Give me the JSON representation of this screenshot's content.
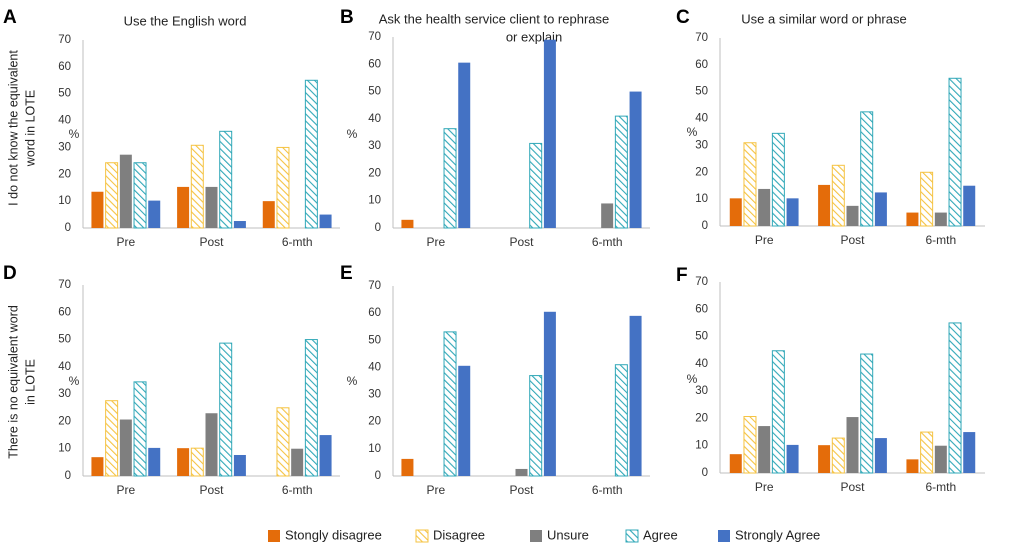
{
  "chart_data": {
    "type": "bar",
    "row_labels": [
      [
        "I do not know the equivalent",
        "word in LOTE"
      ],
      [
        "There is no equivalent word",
        "in LOTE"
      ]
    ],
    "legend": [
      {
        "name": "Stongly disagree",
        "color": "#E46C0A",
        "pattern": "solid"
      },
      {
        "name": "Disagree",
        "color": "#F5C342",
        "pattern": "hatch"
      },
      {
        "name": "Unsure",
        "color": "#7F7F7F",
        "pattern": "solid"
      },
      {
        "name": "Agree",
        "color": "#31A8B8",
        "pattern": "hatch"
      },
      {
        "name": "Strongly Agree",
        "color": "#4472C4",
        "pattern": "solid"
      }
    ],
    "panels": [
      {
        "label": "A",
        "title": [
          "Use the English word"
        ],
        "ylabel": "%",
        "categories": [
          "Pre",
          "Post",
          "6-mth"
        ],
        "ylim": [
          0,
          70
        ],
        "yticks": [
          0,
          10,
          20,
          30,
          40,
          50,
          60,
          70
        ],
        "series": [
          {
            "name": "Stongly disagree",
            "values": [
              13.5,
              15.3,
              10
            ]
          },
          {
            "name": "Disagree",
            "values": [
              24.3,
              30.8,
              30
            ]
          },
          {
            "name": "Unsure",
            "values": [
              27.3,
              15.3,
              0
            ]
          },
          {
            "name": "Agree",
            "values": [
              24.3,
              36,
              55
            ]
          },
          {
            "name": "Strongly Agree",
            "values": [
              10.2,
              2.6,
              5
            ]
          }
        ]
      },
      {
        "label": "B",
        "title": [
          "Ask the health service client to rephrase",
          "or explain"
        ],
        "ylabel": "%",
        "categories": [
          "Pre",
          "Post",
          "6-mth"
        ],
        "ylim": [
          0,
          70
        ],
        "yticks": [
          0,
          10,
          20,
          30,
          40,
          50,
          60,
          70
        ],
        "series": [
          {
            "name": "Stongly disagree",
            "values": [
              3,
              0,
              0
            ]
          },
          {
            "name": "Disagree",
            "values": [
              0,
              0,
              0
            ]
          },
          {
            "name": "Unsure",
            "values": [
              0,
              0,
              9
            ]
          },
          {
            "name": "Agree",
            "values": [
              36.4,
              31,
              41
            ]
          },
          {
            "name": "Strongly Agree",
            "values": [
              60.6,
              69,
              50
            ]
          }
        ]
      },
      {
        "label": "C",
        "title": [
          "Use a similar word or phrase"
        ],
        "ylabel": "%",
        "categories": [
          "Pre",
          "Post",
          "6-mth"
        ],
        "ylim": [
          0,
          70
        ],
        "yticks": [
          0,
          10,
          20,
          30,
          40,
          50,
          60,
          70
        ],
        "series": [
          {
            "name": "Stongly disagree",
            "values": [
              10.3,
              15.3,
              5
            ]
          },
          {
            "name": "Disagree",
            "values": [
              31,
              22.6,
              20
            ]
          },
          {
            "name": "Unsure",
            "values": [
              13.8,
              7.5,
              5
            ]
          },
          {
            "name": "Agree",
            "values": [
              34.5,
              42.5,
              55
            ]
          },
          {
            "name": "Strongly Agree",
            "values": [
              10.3,
              12.5,
              15
            ]
          }
        ]
      },
      {
        "label": "D",
        "title": [],
        "ylabel": "%",
        "categories": [
          "Pre",
          "Post",
          "6-mth"
        ],
        "ylim": [
          0,
          70
        ],
        "yticks": [
          0,
          10,
          20,
          30,
          40,
          50,
          60,
          70
        ],
        "series": [
          {
            "name": "Stongly disagree",
            "values": [
              6.9,
              10.2,
              0
            ]
          },
          {
            "name": "Disagree",
            "values": [
              27.6,
              10.2,
              25
            ]
          },
          {
            "name": "Unsure",
            "values": [
              20.7,
              23,
              10
            ]
          },
          {
            "name": "Agree",
            "values": [
              34.5,
              48.7,
              50
            ]
          },
          {
            "name": "Strongly Agree",
            "values": [
              10.3,
              7.7,
              15
            ]
          }
        ]
      },
      {
        "label": "E",
        "title": [],
        "ylabel": "%",
        "categories": [
          "Pre",
          "Post",
          "6-mth"
        ],
        "ylim": [
          0,
          70
        ],
        "yticks": [
          0,
          10,
          20,
          30,
          40,
          50,
          60,
          70
        ],
        "series": [
          {
            "name": "Stongly disagree",
            "values": [
              6.3,
              0,
              0
            ]
          },
          {
            "name": "Disagree",
            "values": [
              0,
              0,
              0
            ]
          },
          {
            "name": "Unsure",
            "values": [
              0,
              2.6,
              0
            ]
          },
          {
            "name": "Agree",
            "values": [
              53.1,
              37,
              41
            ]
          },
          {
            "name": "Strongly Agree",
            "values": [
              40.6,
              60.5,
              59
            ]
          }
        ]
      },
      {
        "label": "F",
        "title": [],
        "ylabel": "%",
        "categories": [
          "Pre",
          "Post",
          "6-mth"
        ],
        "ylim": [
          0,
          70
        ],
        "yticks": [
          0,
          10,
          20,
          30,
          40,
          50,
          60,
          70
        ],
        "series": [
          {
            "name": "Stongly disagree",
            "values": [
              6.9,
              10.2,
              5
            ]
          },
          {
            "name": "Disagree",
            "values": [
              20.7,
              12.8,
              15
            ]
          },
          {
            "name": "Unsure",
            "values": [
              17.2,
              20.5,
              10
            ]
          },
          {
            "name": "Agree",
            "values": [
              44.8,
              43.6,
              55
            ]
          },
          {
            "name": "Strongly Agree",
            "values": [
              10.3,
              12.8,
              15
            ]
          }
        ]
      }
    ]
  }
}
